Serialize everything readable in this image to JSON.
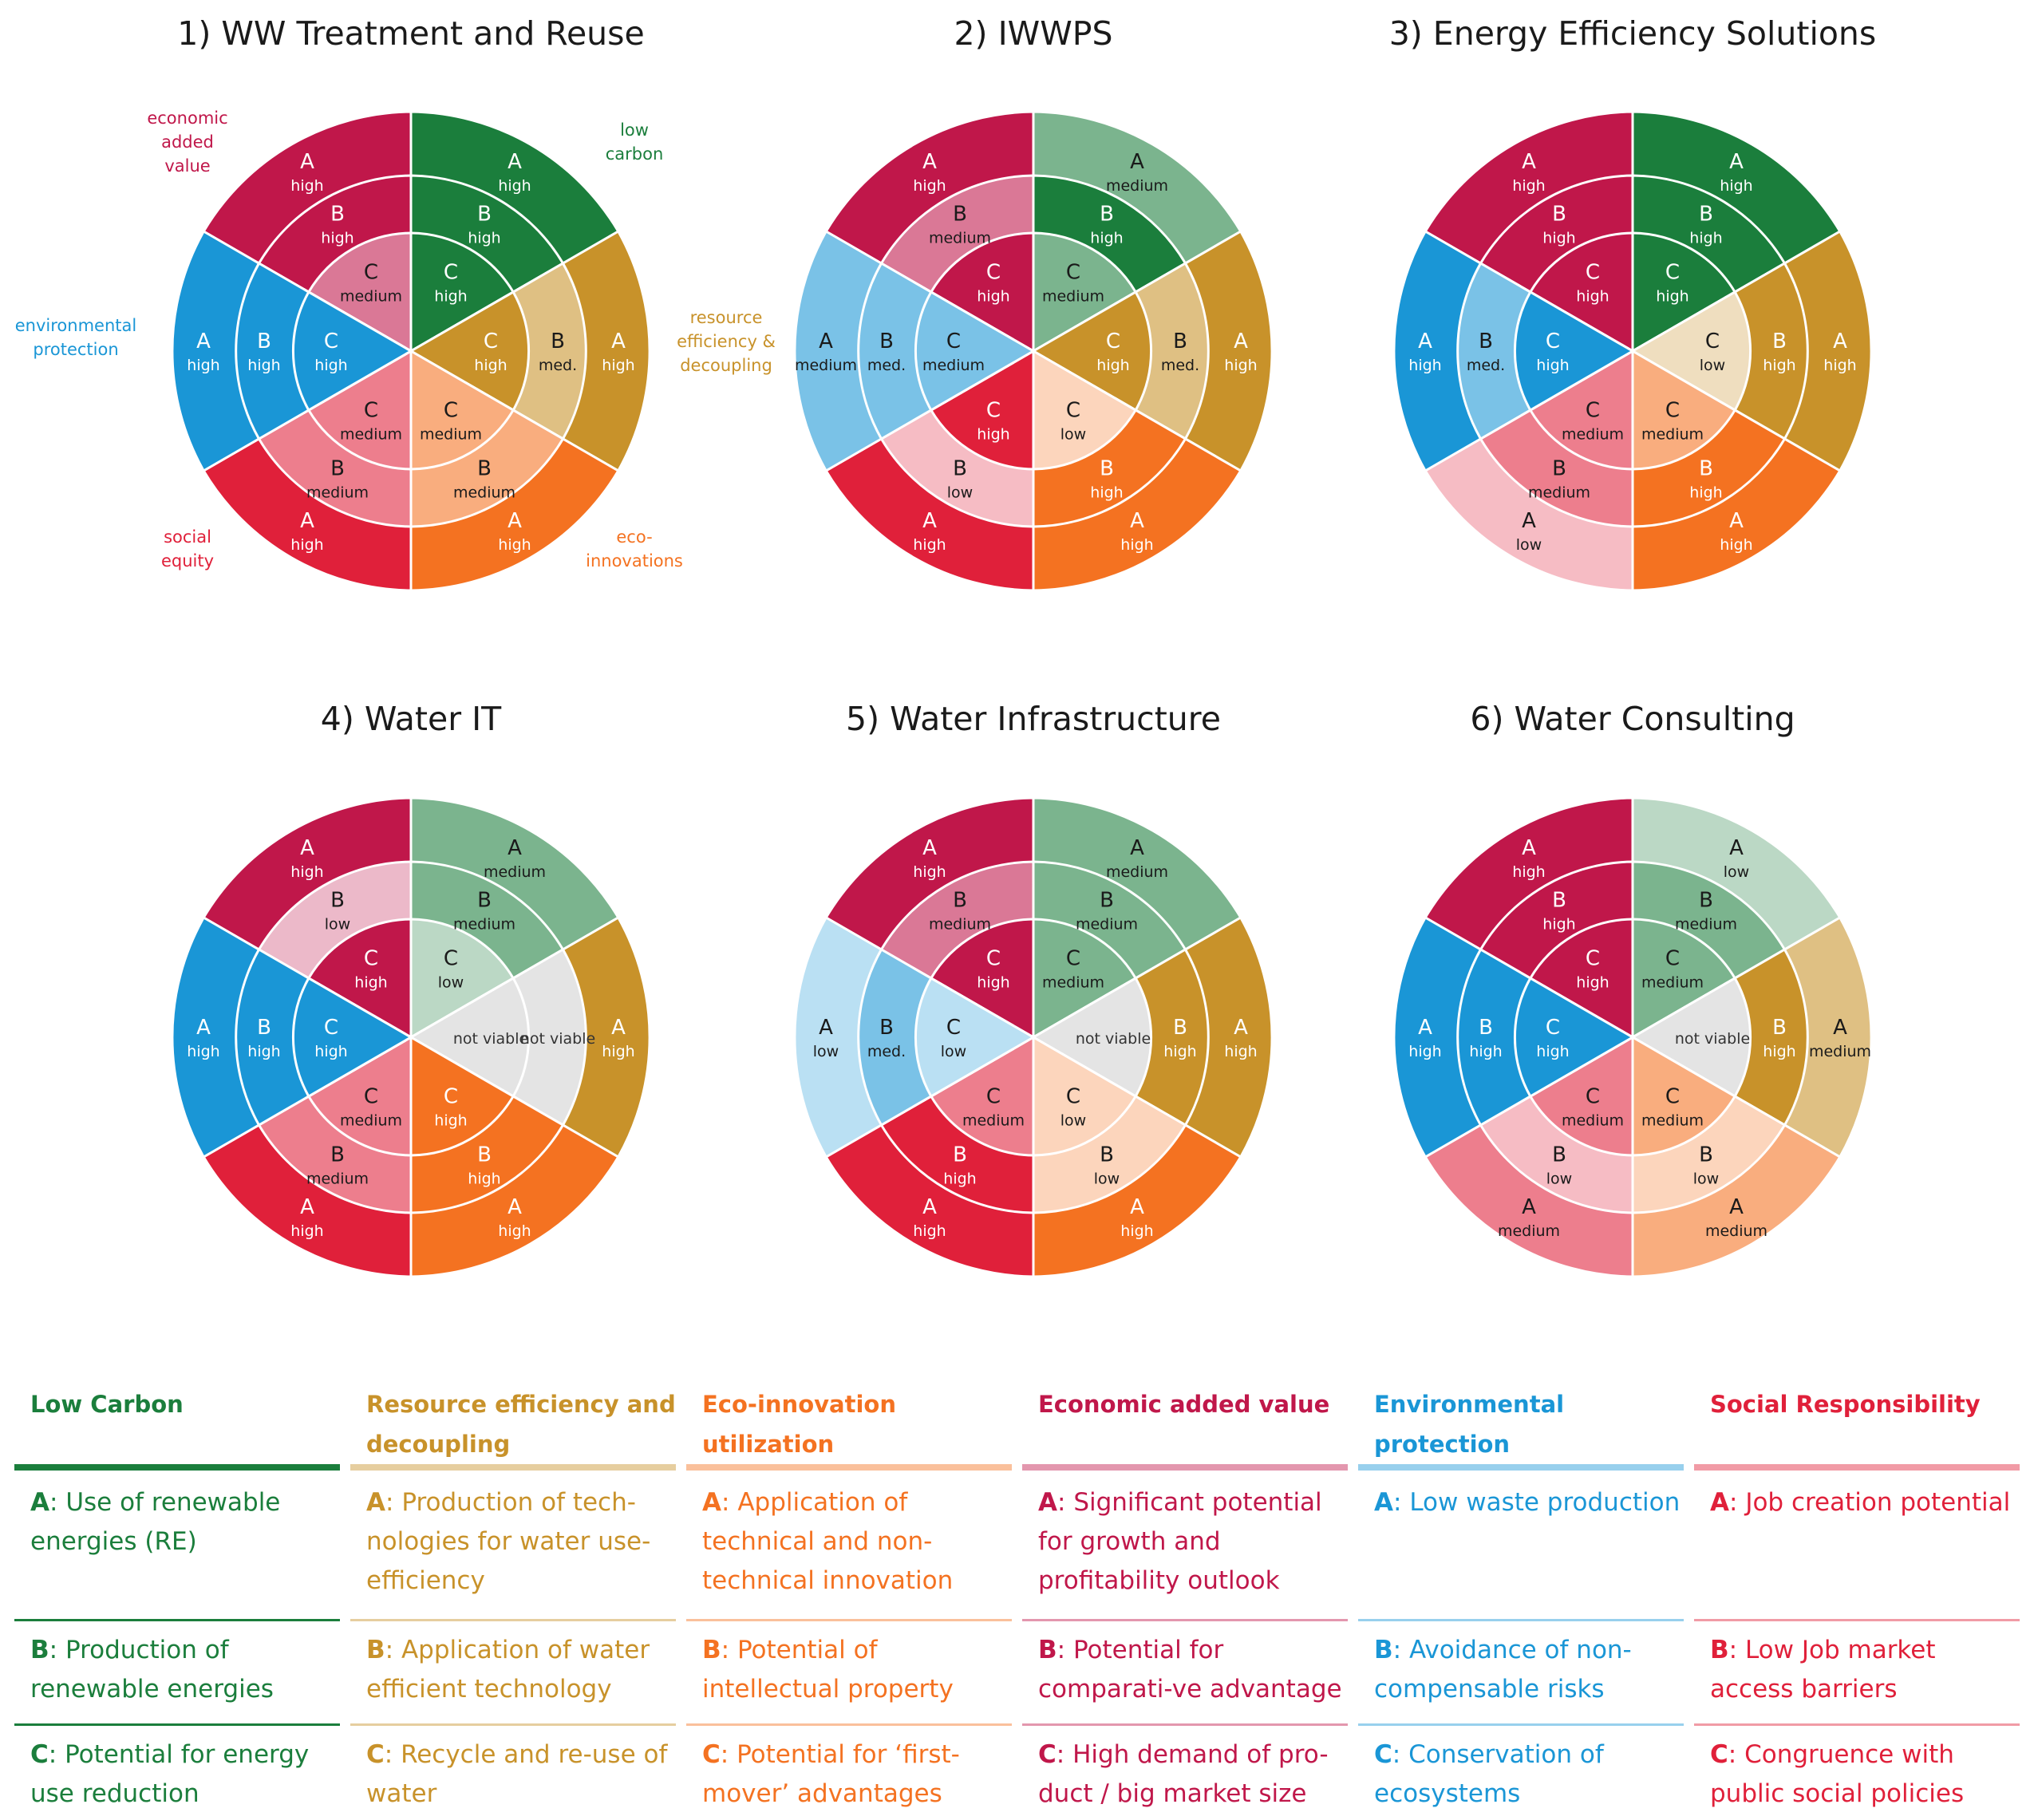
{
  "colors": {
    "low_carbon": "#1b7e3c",
    "resource": "#c8922a",
    "eco": "#f47221",
    "economic": "#c0174a",
    "environmental": "#1a96d6",
    "social": "#e0203a"
  },
  "petal_labels": {
    "economic": "economic added value",
    "low_carbon": "low carbon",
    "environmental": "environmental protection",
    "resource": "resource efficiency & decoupling",
    "social": "social equity",
    "eco": "eco-innovations"
  },
  "flowers": [
    {
      "title": "1) WW Treatment and Reuse",
      "petals": {
        "economic": {
          "A": "high",
          "B": "high",
          "C": "medium"
        },
        "low_carbon": {
          "A": "high",
          "B": "high",
          "C": "high"
        },
        "environmental": {
          "A": "high",
          "B": "high",
          "C": "high"
        },
        "resource": {
          "A": "high",
          "B": "med.",
          "C": "high"
        },
        "social": {
          "A": "high",
          "B": "medium",
          "C": "medium"
        },
        "eco": {
          "A": "high",
          "B": "medium",
          "C": "medium"
        }
      }
    },
    {
      "title": "2) IWWPS",
      "petals": {
        "economic": {
          "A": "high",
          "B": "medium",
          "C": "high"
        },
        "low_carbon": {
          "A": "medium",
          "B": "high",
          "C": "medium"
        },
        "environmental": {
          "A": "medium",
          "B": "med.",
          "C": "medium"
        },
        "resource": {
          "A": "high",
          "B": "med.",
          "C": "high"
        },
        "social": {
          "A": "high",
          "B": "low",
          "C": "high"
        },
        "eco": {
          "A": "high",
          "B": "high",
          "C": "low"
        }
      }
    },
    {
      "title": "3) Energy Efficiency Solutions",
      "petals": {
        "economic": {
          "A": "high",
          "B": "high",
          "C": "high"
        },
        "low_carbon": {
          "A": "high",
          "B": "high",
          "C": "high"
        },
        "environmental": {
          "A": "high",
          "B": "med.",
          "C": "high"
        },
        "resource": {
          "A": "high",
          "B": "high",
          "C": "low"
        },
        "social": {
          "A": "low",
          "B": "medium",
          "C": "medium"
        },
        "eco": {
          "A": "high",
          "B": "high",
          "C": "medium"
        }
      }
    },
    {
      "title": "4) Water IT",
      "petals": {
        "economic": {
          "A": "high",
          "B": "low",
          "C": "high"
        },
        "low_carbon": {
          "A": "medium",
          "B": "medium",
          "C": "low"
        },
        "environmental": {
          "A": "high",
          "B": "high",
          "C": "high"
        },
        "resource": {
          "A": "high",
          "B": "not viable",
          "C": "not viable"
        },
        "social": {
          "A": "high",
          "B": "medium",
          "C": "medium"
        },
        "eco": {
          "A": "high",
          "B": "high",
          "C": "high"
        }
      }
    },
    {
      "title": "5) Water Infrastructure",
      "petals": {
        "economic": {
          "A": "high",
          "B": "medium",
          "C": "high"
        },
        "low_carbon": {
          "A": "medium",
          "B": "medium",
          "C": "medium"
        },
        "environmental": {
          "A": "low",
          "B": "med.",
          "C": "low"
        },
        "resource": {
          "A": "high",
          "B": "high",
          "C": "not viable"
        },
        "social": {
          "A": "high",
          "B": "high",
          "C": "medium"
        },
        "eco": {
          "A": "high",
          "B": "low",
          "C": "low"
        }
      }
    },
    {
      "title": "6) Water Consulting",
      "petals": {
        "economic": {
          "A": "high",
          "B": "high",
          "C": "high"
        },
        "low_carbon": {
          "A": "low",
          "B": "medium",
          "C": "medium"
        },
        "environmental": {
          "A": "high",
          "B": "high",
          "C": "high"
        },
        "resource": {
          "A": "medium",
          "B": "high",
          "C": "not viable"
        },
        "social": {
          "A": "medium",
          "B": "low",
          "C": "medium"
        },
        "eco": {
          "A": "medium",
          "B": "low",
          "C": "medium"
        }
      }
    }
  ],
  "legend": [
    {
      "key": "low_carbon",
      "heading": "Low Carbon",
      "items": [
        {
          "letter": "A",
          "text": "Use of renewable energies (RE)"
        },
        {
          "letter": "B",
          "text": "Production of renewable energies"
        },
        {
          "letter": "C",
          "text": "Potential for energy use reduction"
        }
      ]
    },
    {
      "key": "resource",
      "heading": "Resource efficiency and decoupling",
      "items": [
        {
          "letter": "A",
          "text": "Production of tech-nologies for water use-efficiency"
        },
        {
          "letter": "B",
          "text": "Application of water efficient technology"
        },
        {
          "letter": "C",
          "text": "Recycle and re-use of water"
        }
      ]
    },
    {
      "key": "eco",
      "heading": "Eco-innovation utilization",
      "items": [
        {
          "letter": "A",
          "text": "Application of technical and non-technical innovation"
        },
        {
          "letter": "B",
          "text": "Potential of intellectual property"
        },
        {
          "letter": "C",
          "text": "Potential for ‘first-mover’ advantages"
        }
      ]
    },
    {
      "key": "economic",
      "heading": "Economic added value",
      "items": [
        {
          "letter": "A",
          "text": "Significant potential for growth and profitability outlook"
        },
        {
          "letter": "B",
          "text": "Potential for comparati-ve advantage"
        },
        {
          "letter": "C",
          "text": "High demand of pro-duct / big market size"
        }
      ]
    },
    {
      "key": "environmental",
      "heading": "Environmental protection",
      "items": [
        {
          "letter": "A",
          "text": "Low waste production"
        },
        {
          "letter": "B",
          "text": "Avoidance of non-compensable risks"
        },
        {
          "letter": "C",
          "text": "Conservation of ecosystems"
        }
      ]
    },
    {
      "key": "social",
      "heading": "Social Responsibility",
      "items": [
        {
          "letter": "A",
          "text": "Job creation potential"
        },
        {
          "letter": "B",
          "text": "Low Job market access barriers"
        },
        {
          "letter": "C",
          "text": "Congruence with public social policies"
        }
      ]
    }
  ]
}
